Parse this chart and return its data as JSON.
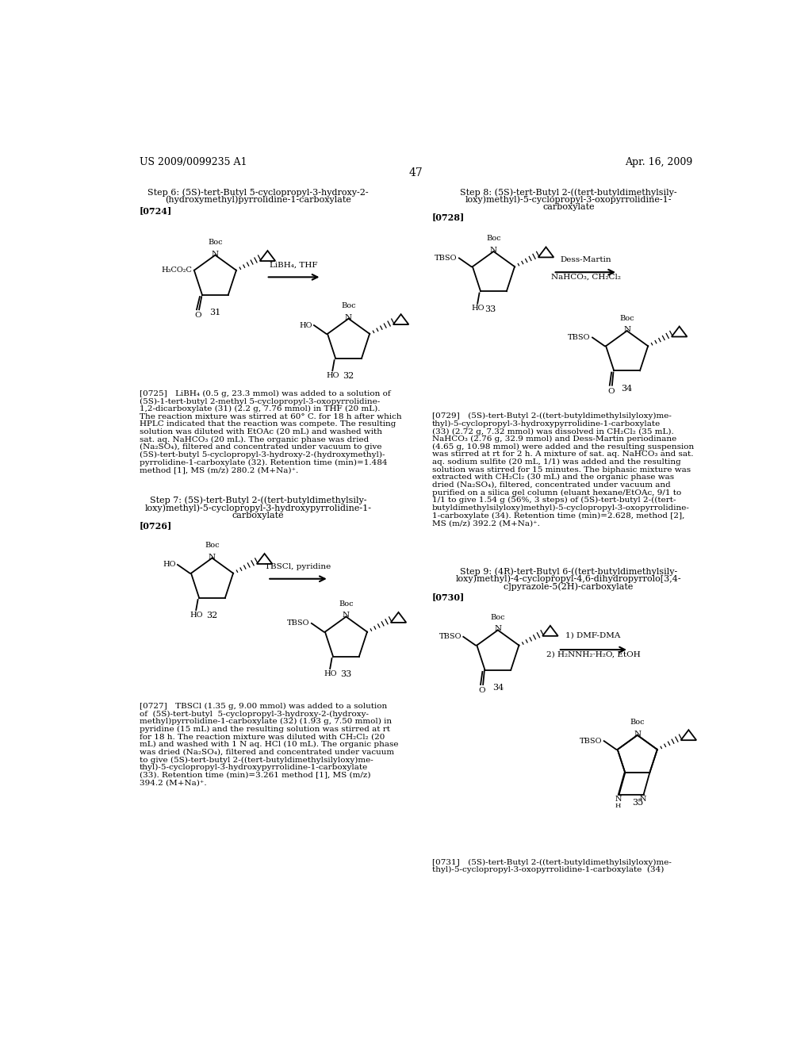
{
  "bg": "#ffffff",
  "fw": [
    10.24,
    13.2
  ],
  "dpi": 100,
  "hdr_l": "US 2009/0099235 A1",
  "hdr_r": "Apr. 16, 2009",
  "pgnum": "47",
  "step6_t1": "Step 6: (5S)-tert-Butyl 5-cyclopropyl-3-hydroxy-2-",
  "step6_t2": "(hydroxymethyl)pyrrolidine-1-carboxylate",
  "step7_t1": "Step 7: (5S)-tert-Butyl 2-((tert-butyldimethylsily-",
  "step7_t2": "loxy)methyl)-5-cyclopropyl-3-hydroxypyrrolidine-1-",
  "step7_t3": "carboxylate",
  "step8_t1": "Step 8: (5S)-tert-Butyl 2-((tert-butyldimethylsily-",
  "step8_t2": "loxy)methyl)-5-cyclopropyl-3-oxopyrrolidine-1-",
  "step8_t3": "carboxylate",
  "step9_t1": "Step 9: (4R)-tert-Butyl 6-((tert-butyldimethylsily-",
  "step9_t2": "loxy)methyl)-4-cyclopropyl-4,6-dihydropyrrolo[3,4-",
  "step9_t3": "c]pyrazole-5(2H)-carboxylate",
  "lbl_724": "[0724]",
  "lbl_726": "[0726]",
  "lbl_728": "[0728]",
  "lbl_730": "[0730]",
  "p725_lines": [
    "[0725] LiBH₄ (0.5 g, 23.3 mmol) was added to a solution of",
    "(5S)-1-tert-butyl 2-methyl 5-cyclopropyl-3-oxopyrrolidine-",
    "1,2-dicarboxylate (31) (2.2 g, 7.76 mmol) in THF (20 mL).",
    "The reaction mixture was stirred at 60° C. for 18 h after which",
    "HPLC indicated that the reaction was compete. The resulting",
    "solution was diluted with EtOAc (20 mL) and washed with",
    "sat. aq. NaHCO₃ (20 mL). The organic phase was dried",
    "(Na₂SO₄), filtered and concentrated under vacuum to give",
    "(5S)-tert-butyl 5-cyclopropyl-3-hydroxy-2-(hydroxymethyl)-",
    "pyrrolidine-1-carboxylate (32). Retention time (min)=1.484",
    "method [1], MS (m/z) 280.2 (M+Na)⁺."
  ],
  "p727_lines": [
    "[0727] TBSCl (1.35 g, 9.00 mmol) was added to a solution",
    "of  (5S)-tert-butyl  5-cyclopropyl-3-hydroxy-2-(hydroxy-",
    "methyl)pyrrolidine-1-carboxylate (32) (1.93 g, 7.50 mmol) in",
    "pyridine (15 mL) and the resulting solution was stirred at rt",
    "for 18 h. The reaction mixture was diluted with CH₂Cl₂ (20",
    "mL) and washed with 1 N aq. HCl (10 mL). The organic phase",
    "was dried (Na₂SO₄), filtered and concentrated under vacuum",
    "to give (5S)-tert-butyl 2-((tert-butyldimethylsilyloxy)me-",
    "thyl)-5-cyclopropyl-3-hydroxypyrrolidine-1-carboxylate",
    "(33). Retention time (min)=3.261 method [1], MS (m/z)",
    "394.2 (M+Na)⁺."
  ],
  "p729_lines": [
    "[0729] (5S)-tert-Butyl 2-((tert-butyldimethylsilyloxy)me-",
    "thyl)-5-cyclopropyl-3-hydroxypyrrolidine-1-carboxylate",
    "(33) (2.72 g, 7.32 mmol) was dissolved in CH₂Cl₂ (35 mL).",
    "NaHCO₃ (2.76 g, 32.9 mmol) and Dess-Martin periodinane",
    "(4.65 g, 10.98 mmol) were added and the resulting suspension",
    "was stirred at rt for 2 h. A mixture of sat. aq. NaHCO₃ and sat.",
    "aq. sodium sulfite (20 mL, 1/1) was added and the resulting",
    "solution was stirred for 15 minutes. The biphasic mixture was",
    "extracted with CH₂Cl₂ (30 mL) and the organic phase was",
    "dried (Na₂SO₄), filtered, concentrated under vacuum and",
    "purified on a silica gel column (eluant hexane/EtOAc, 9/1 to",
    "1/1 to give 1.54 g (56%, 3 steps) of (5S)-tert-butyl 2-((tert-",
    "butyldimethylsilyloxy)methyl)-5-cyclopropyl-3-oxopyrrolidine-",
    "1-carboxylate (34). Retention time (min)=2.628, method [2],",
    "MS (m/z) 392.2 (M+Na)⁺."
  ],
  "p731_lines": [
    "[0731] (5S)-tert-Butyl 2-((tert-butyldimethylsilyloxy)me-",
    "thyl)-5-cyclopropyl-3-oxopyrrolidine-1-carboxylate  (34)"
  ]
}
